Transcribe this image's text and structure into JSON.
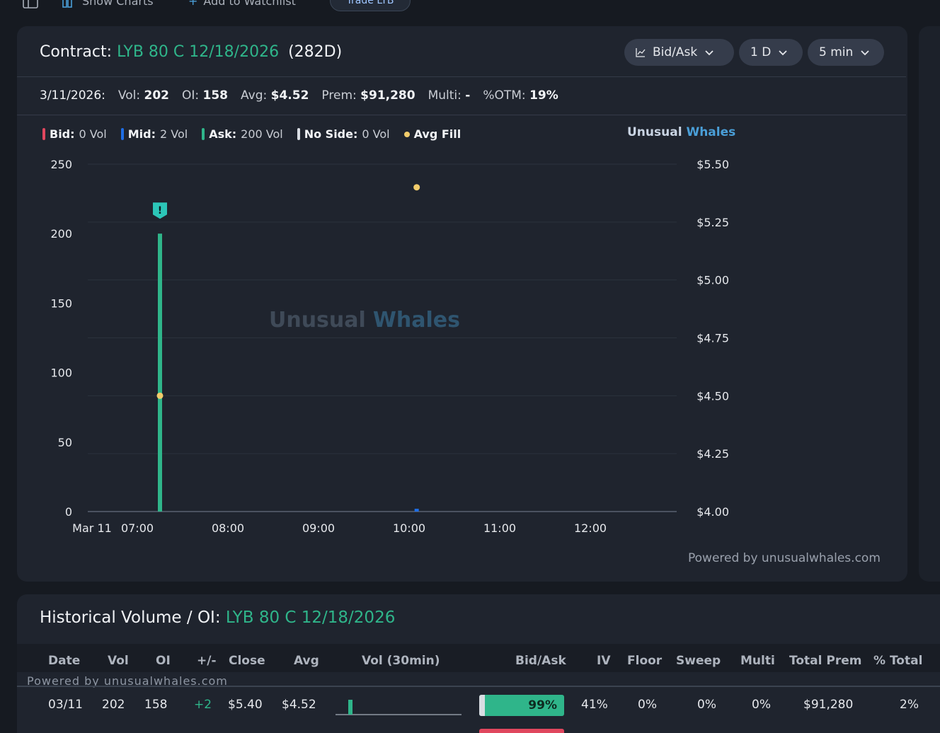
{
  "topbar": {
    "show_charts": "Show Charts",
    "add_watchlist": "Add to Watchlist",
    "trade_btn": "Trade LYB"
  },
  "contract": {
    "label": "Contract:",
    "name": "LYB 80 C 12/18/2026",
    "dte": "(282D)",
    "controls": [
      "Bid/Ask",
      "1 D",
      "5 min"
    ]
  },
  "stats": {
    "date": "3/11/2026:",
    "vol_label": "Vol:",
    "vol": "202",
    "oi_label": "OI:",
    "oi": "158",
    "avg_label": "Avg:",
    "avg": "$4.52",
    "prem_label": "Prem:",
    "prem": "$91,280",
    "multi_label": "Multi:",
    "multi": "-",
    "otm_label": "%OTM:",
    "otm": "19%"
  },
  "legend": {
    "bid_label": "Bid:",
    "bid": "0 Vol",
    "mid_label": "Mid:",
    "mid": "2 Vol",
    "ask_label": "Ask:",
    "ask": "200 Vol",
    "noside_label": "No Side:",
    "noside": "0 Vol",
    "avgfill_label": "Avg Fill"
  },
  "brand": {
    "part1": "Unusual",
    "part2": "Whales"
  },
  "powered_main": "Powered by unusualwhales.com",
  "colors": {
    "bid": "#e0475e",
    "mid": "#1e6ee6",
    "ask": "#2fb58a",
    "noside": "#d9dde3",
    "avg_fill": "#f2cc6b",
    "accent": "#2fb58a"
  },
  "chart_data": {
    "type": "bar",
    "x_ticks": [
      "Mar 11",
      "07:00",
      "08:00",
      "09:00",
      "10:00",
      "11:00",
      "12:00"
    ],
    "y_left_ticks": [
      "0",
      "50",
      "100",
      "150",
      "200",
      "250"
    ],
    "y_left_range": [
      0,
      250
    ],
    "y_right_ticks": [
      "$4.00",
      "$4.25",
      "$4.50",
      "$4.75",
      "$5.00",
      "$5.25",
      "$5.50"
    ],
    "y_right_range": [
      4.0,
      5.5
    ],
    "volume_bars": [
      {
        "time": "07:15",
        "side": "ask",
        "volume": 200
      },
      {
        "time": "10:05",
        "side": "mid",
        "volume": 2
      }
    ],
    "avg_fill_points": [
      {
        "time": "07:15",
        "price": 4.5
      },
      {
        "time": "10:05",
        "price": 5.4
      }
    ],
    "alert_marker": {
      "time": "07:15",
      "symbol": "!"
    }
  },
  "history": {
    "title_label": "Historical Volume / OI:",
    "title_contract": "LYB 80 C 12/18/2026",
    "columns": [
      "Date",
      "Vol",
      "OI",
      "+/-",
      "Close",
      "Avg",
      "Vol (30min)",
      "Bid/Ask",
      "IV",
      "Floor",
      "Sweep",
      "Multi",
      "Total Prem",
      "% Total"
    ],
    "powered": "Powered by unusualwhales.com",
    "rows": [
      {
        "date": "03/11",
        "vol": "202",
        "oi": "158",
        "change": "+2",
        "close": "$5.40",
        "avg": "$4.52",
        "bid_ask": "99%",
        "iv": "41%",
        "floor": "0%",
        "sweep": "0%",
        "multi": "0%",
        "total_prem": "$91,280",
        "pct_total": "2%"
      }
    ]
  }
}
